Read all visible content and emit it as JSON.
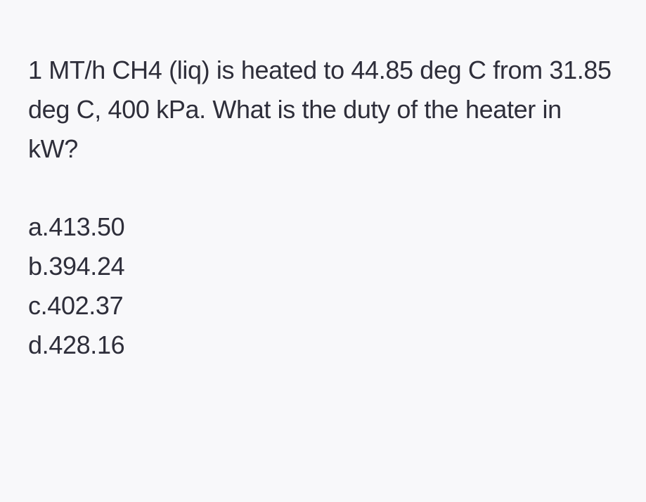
{
  "question": {
    "text": "1 MT/h CH4 (liq) is heated to 44.85 deg C from 31.85 deg C, 400 kPa. What is the duty of the heater in kW?",
    "text_color": "#2e2e3a",
    "background_color": "#f8f8fa",
    "fontsize": 36
  },
  "options": [
    {
      "label": "a.",
      "value": "413.50"
    },
    {
      "label": "b.",
      "value": "394.24"
    },
    {
      "label": "c.",
      "value": "402.37"
    },
    {
      "label": "d.",
      "value": "428.16"
    }
  ]
}
